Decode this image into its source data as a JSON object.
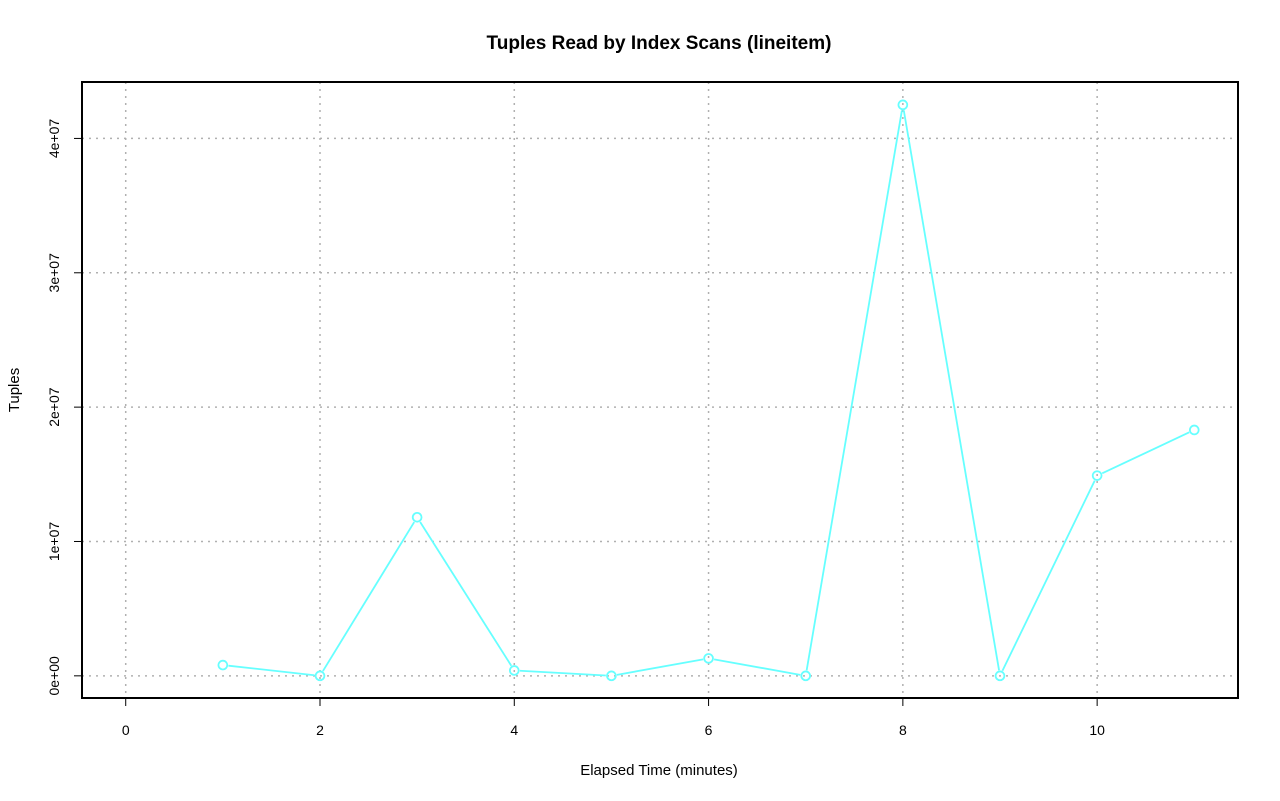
{
  "chart_data": {
    "type": "line",
    "title": "Tuples Read by Index Scans (lineitem)",
    "xlabel": "Elapsed Time (minutes)",
    "ylabel": "Tuples",
    "xlim": [
      -0.45,
      11.45
    ],
    "ylim": [
      -1650000,
      44200000
    ],
    "x_ticks": [
      0,
      2,
      4,
      6,
      8,
      10
    ],
    "x_tick_labels": [
      "0",
      "2",
      "4",
      "6",
      "8",
      "10"
    ],
    "y_ticks": [
      0,
      10000000,
      20000000,
      30000000,
      40000000
    ],
    "y_tick_labels": [
      "0e+00",
      "1e+07",
      "2e+07",
      "3e+07",
      "4e+07"
    ],
    "grid": true,
    "series": [
      {
        "color": "#66ffff",
        "x": [
          1,
          2,
          3,
          4,
          5,
          6,
          7,
          8,
          9,
          10,
          11
        ],
        "y": [
          800000,
          0,
          11800000,
          400000,
          0,
          1300000,
          0,
          42500000,
          0,
          14900000,
          18300000
        ]
      }
    ]
  }
}
